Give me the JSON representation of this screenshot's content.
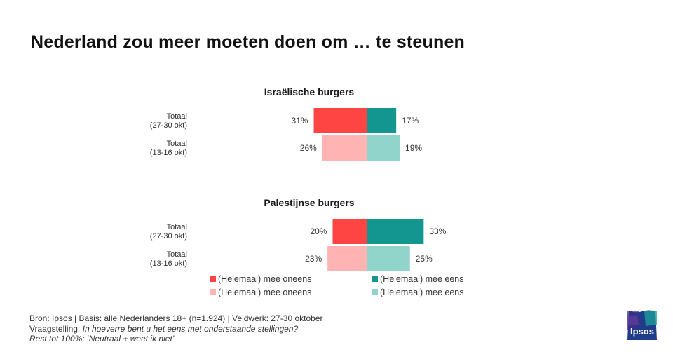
{
  "title": "Nederland zou meer moeten doen om … te steunen",
  "chart_data": {
    "type": "bar",
    "orientation": "horizontal-diverging",
    "sections": [
      {
        "title": "Israëlische burgers",
        "rows": [
          {
            "label_line1": "Totaal",
            "label_line2": "(27-30 okt)",
            "disagree": 31,
            "agree": 17,
            "disagree_label": "31%",
            "agree_label": "17%",
            "period": "current"
          },
          {
            "label_line1": "Totaal",
            "label_line2": "(13-16 okt)",
            "disagree": 26,
            "agree": 19,
            "disagree_label": "26%",
            "agree_label": "19%",
            "period": "previous"
          }
        ]
      },
      {
        "title": "Palestijnse burgers",
        "rows": [
          {
            "label_line1": "Totaal",
            "label_line2": "(27-30 okt)",
            "disagree": 20,
            "agree": 33,
            "disagree_label": "20%",
            "agree_label": "33%",
            "period": "current"
          },
          {
            "label_line1": "Totaal",
            "label_line2": "(13-16 okt)",
            "disagree": 23,
            "agree": 25,
            "disagree_label": "23%",
            "agree_label": "25%",
            "period": "previous"
          }
        ]
      }
    ],
    "legend": [
      {
        "label": "(Helemaal) mee oneens",
        "color": "#ff4444"
      },
      {
        "label": "(Helemaal) mee eens",
        "color": "#149690"
      },
      {
        "label": "(Helemaal) mee oneens",
        "color": "#ffb3b3"
      },
      {
        "label": "(Helemaal) mee eens",
        "color": "#90d4cb"
      }
    ],
    "colors": {
      "disagree_current": "#ff4444",
      "agree_current": "#149690",
      "disagree_previous": "#ffb3b3",
      "agree_previous": "#90d4cb"
    }
  },
  "footer": {
    "line1": "Bron: Ipsos | Basis: alle Nederlanders  18+ (n=1.924)  | Veldwerk: 27-30  oktober",
    "line2_prefix": "Vraagstelling: ",
    "line2_italic": "In hoeverre  bent u het eens met onderstaande  stellingen?",
    "line3": "Rest tot 100%: ‘Neutraal  + weet ik niet’"
  },
  "logo": {
    "text": "Ipsos",
    "color": "#1f3c8a"
  }
}
